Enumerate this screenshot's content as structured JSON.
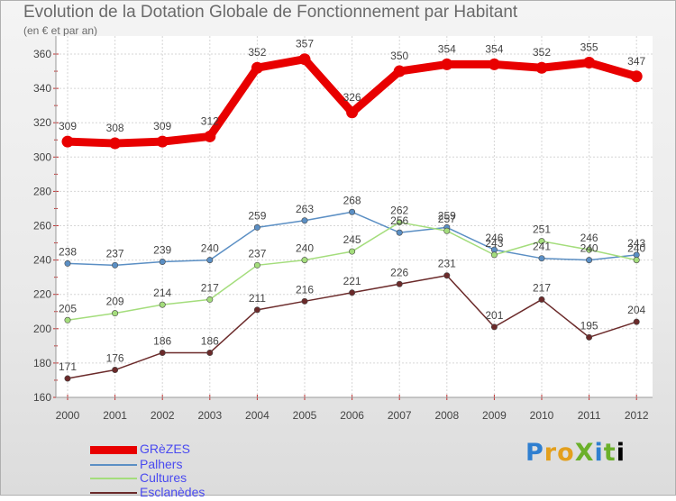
{
  "title": "Evolution de la Dotation Globale de Fonctionnement par Habitant",
  "subtitle": "(en € et par an)",
  "logo": "ProXiti",
  "chart_data": {
    "type": "line",
    "title": "Evolution de la Dotation Globale de Fonctionnement par Habitant",
    "subtitle": "(en € et par an)",
    "xlabel": "",
    "ylabel": "",
    "categories": [
      "2000",
      "2001",
      "2002",
      "2003",
      "2004",
      "2005",
      "2006",
      "2007",
      "2008",
      "2009",
      "2010",
      "2011",
      "2012"
    ],
    "ylim": [
      160,
      360
    ],
    "yticks": [
      160,
      180,
      200,
      220,
      240,
      260,
      280,
      300,
      320,
      340,
      360
    ],
    "grid": true,
    "legend_position": "bottom-left",
    "series": [
      {
        "name": "GRèZES",
        "color": "#e80000",
        "values": [
          309,
          308,
          309,
          312,
          352,
          357,
          326,
          350,
          354,
          354,
          352,
          355,
          347
        ]
      },
      {
        "name": "Palhers",
        "color": "#5b8fc4",
        "values": [
          238,
          237,
          239,
          240,
          259,
          263,
          268,
          256,
          259,
          246,
          241,
          240,
          243
        ]
      },
      {
        "name": "Cultures",
        "color": "#a4dd7c",
        "values": [
          205,
          209,
          214,
          217,
          237,
          240,
          245,
          262,
          257,
          243,
          251,
          246,
          240
        ]
      },
      {
        "name": "Esclanèdes",
        "color": "#6b2a2a",
        "values": [
          171,
          176,
          186,
          186,
          211,
          216,
          221,
          226,
          231,
          201,
          217,
          195,
          204
        ]
      }
    ]
  }
}
